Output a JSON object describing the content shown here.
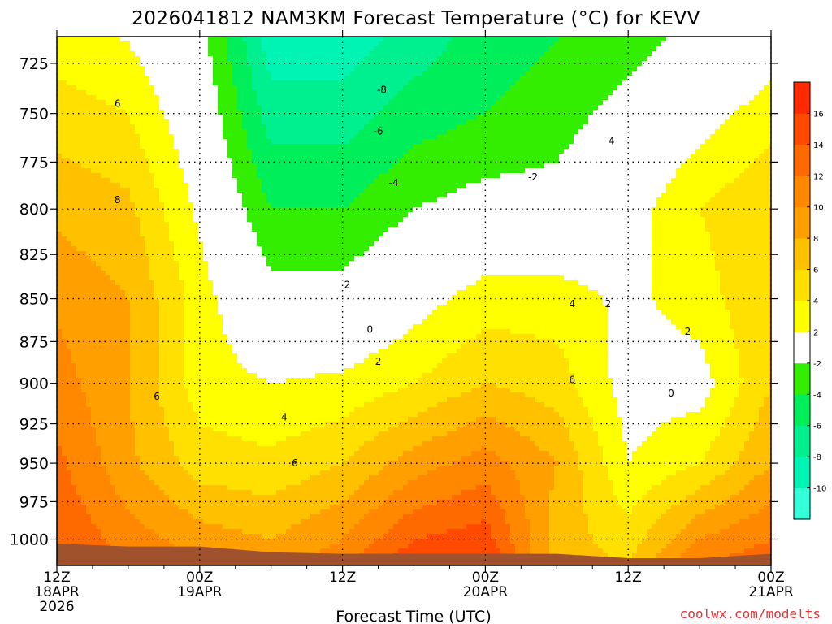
{
  "chart_data": {
    "type": "heatmap",
    "title": "2026041812 NAM3KM Forecast Temperature (°C) for KEVV",
    "xlabel": "Forecast Time (UTC)",
    "ylabel": "",
    "x_ticks": [
      {
        "hour": 0,
        "lines": [
          "12Z",
          "18APR",
          "2026"
        ]
      },
      {
        "hour": 12,
        "lines": [
          "00Z",
          "19APR"
        ]
      },
      {
        "hour": 24,
        "lines": [
          "12Z"
        ]
      },
      {
        "hour": 36,
        "lines": [
          "00Z",
          "20APR"
        ]
      },
      {
        "hour": 48,
        "lines": [
          "12Z"
        ]
      },
      {
        "hour": 60,
        "lines": [
          "00Z",
          "21APR"
        ]
      }
    ],
    "xlim": [
      0,
      60
    ],
    "y_ticks": [
      "725",
      "750",
      "775",
      "800",
      "825",
      "850",
      "875",
      "900",
      "925",
      "950",
      "975",
      "1000"
    ],
    "ylim": [
      1018,
      712
    ],
    "y_scale": "log",
    "grid": true,
    "colorbar": {
      "placement": "right",
      "ticks": [
        "16",
        "14",
        "12",
        "10",
        "8",
        "6",
        "4",
        "2",
        "-2",
        "-4",
        "-6",
        "-8",
        "-10"
      ],
      "bins": [
        {
          "lo": -12,
          "hi": -10,
          "color": "#33ffd9"
        },
        {
          "lo": -10,
          "hi": -8,
          "color": "#00f5b5"
        },
        {
          "lo": -8,
          "hi": -6,
          "color": "#00f090"
        },
        {
          "lo": -6,
          "hi": -4,
          "color": "#00ee5a"
        },
        {
          "lo": -4,
          "hi": -2,
          "color": "#33ee00"
        },
        {
          "lo": -2,
          "hi": 2,
          "color": "#ffffff"
        },
        {
          "lo": 2,
          "hi": 4,
          "color": "#ffff00"
        },
        {
          "lo": 4,
          "hi": 6,
          "color": "#ffe000"
        },
        {
          "lo": 6,
          "hi": 8,
          "color": "#ffc000"
        },
        {
          "lo": 8,
          "hi": 10,
          "color": "#ffa000"
        },
        {
          "lo": 10,
          "hi": 12,
          "color": "#ff8800"
        },
        {
          "lo": 12,
          "hi": 14,
          "color": "#ff6a00"
        },
        {
          "lo": 14,
          "hi": 16,
          "color": "#ff4a00"
        },
        {
          "lo": 16,
          "hi": 18,
          "color": "#ff2a00"
        }
      ]
    },
    "contour_labels": [
      "6",
      "8",
      "6",
      "4",
      "6",
      "2",
      "0",
      "2",
      "-8",
      "-6",
      "-4",
      "-2",
      "4",
      "4",
      "6",
      "2",
      "2",
      "0"
    ],
    "series": [
      {
        "hour": 0,
        "p": [
          715,
          750,
          800,
          850,
          900,
          950,
          1000
        ],
        "t": [
          3,
          5,
          7.5,
          9.5,
          11,
          12.5,
          14
        ]
      },
      {
        "hour": 6,
        "p": [
          715,
          750,
          800,
          850,
          900,
          950,
          1000
        ],
        "t": [
          2,
          4,
          6.5,
          8,
          8,
          8.5,
          11
        ]
      },
      {
        "hour": 12,
        "p": [
          715,
          750,
          800,
          850,
          900,
          950,
          1000
        ],
        "t": [
          -1,
          0,
          1.5,
          3,
          3,
          5,
          9
        ]
      },
      {
        "hour": 18,
        "p": [
          715,
          750,
          800,
          850,
          900,
          950,
          1000
        ],
        "t": [
          -9,
          -7,
          -4,
          -1,
          2,
          4.5,
          8
        ]
      },
      {
        "hour": 24,
        "p": [
          715,
          750,
          800,
          850,
          900,
          950,
          1000
        ],
        "t": [
          -9,
          -7,
          -4,
          -1,
          2.5,
          6,
          10
        ]
      },
      {
        "hour": 30,
        "p": [
          715,
          750,
          800,
          850,
          900,
          950,
          1000
        ],
        "t": [
          -7,
          -5,
          -2,
          1,
          4,
          9,
          14
        ]
      },
      {
        "hour": 36,
        "p": [
          715,
          750,
          800,
          850,
          900,
          950,
          1000
        ],
        "t": [
          -5,
          -4,
          -1,
          3,
          6,
          11,
          15
        ]
      },
      {
        "hour": 42,
        "p": [
          715,
          750,
          800,
          850,
          900,
          950,
          1000
        ],
        "t": [
          -4,
          -3,
          -1,
          3,
          5,
          8,
          7
        ]
      },
      {
        "hour": 48,
        "p": [
          715,
          750,
          800,
          850,
          900,
          950,
          1000
        ],
        "t": [
          -3,
          -1,
          1,
          1.5,
          1,
          2,
          5
        ]
      },
      {
        "hour": 54,
        "p": [
          715,
          750,
          800,
          850,
          900,
          950,
          1000
        ],
        "t": [
          -1,
          1,
          4,
          3,
          1,
          4,
          10
        ]
      },
      {
        "hour": 60,
        "p": [
          715,
          750,
          800,
          850,
          900,
          950,
          1000
        ],
        "t": [
          1,
          3,
          6,
          6,
          6,
          8,
          12
        ]
      }
    ]
  },
  "credit": "coolwx.com/modelts",
  "colors": {
    "ground": "#a0522d",
    "freezing_line": "#c0186e",
    "contour": "#000000",
    "grid": "#000000"
  }
}
